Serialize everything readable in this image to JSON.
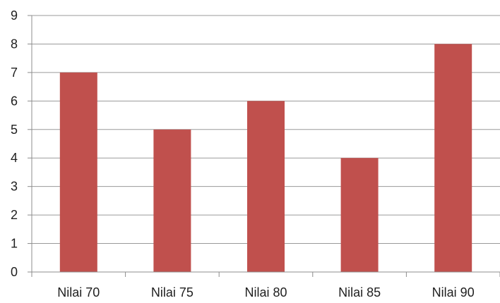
{
  "chart_data": {
    "type": "bar",
    "categories": [
      "Nilai 70",
      "Nilai 75",
      "Nilai 80",
      "Nilai 85",
      "Nilai 90"
    ],
    "values": [
      7,
      5,
      6,
      4,
      8
    ],
    "title": "",
    "xlabel": "",
    "ylabel": "",
    "ylim": [
      0,
      9
    ],
    "yticks": [
      0,
      1,
      2,
      3,
      4,
      5,
      6,
      7,
      8,
      9
    ],
    "grid": true,
    "legend": "none",
    "bar_color": "#c0504d"
  }
}
